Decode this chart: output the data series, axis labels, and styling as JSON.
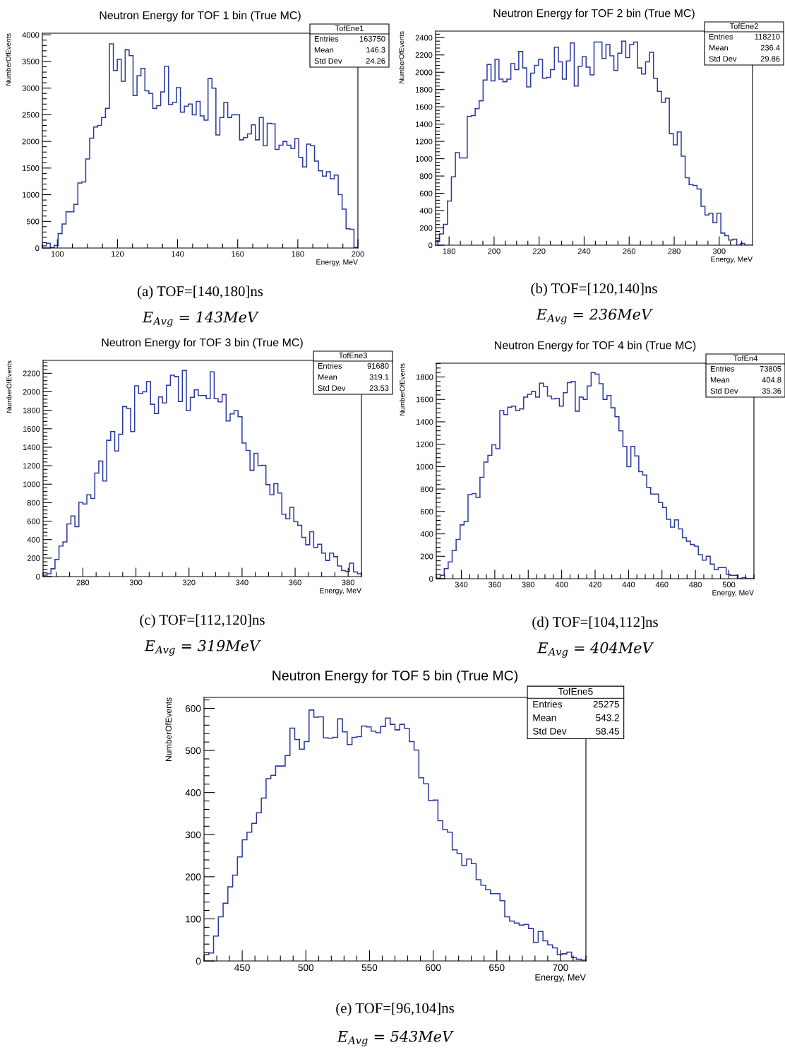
{
  "chart_data": [
    {
      "type": "histogram",
      "title": "Neutron Energy for TOF 1 bin (True MC)",
      "xlabel": "Energy, MeV",
      "ylabel": "NumberOfEvents",
      "color": "#2b3a9e",
      "annotations": [
        "TofEne1",
        "Entries",
        "163750",
        "Mean",
        "146.3",
        "Std Dev",
        "24.26",
        "(a) TOF=[140,180]ns",
        "E$_{Avg}$ = 143MeV"
      ],
      "xlim": [
        95,
        200
      ],
      "ylim": [
        0,
        4030
      ],
      "xticks": [
        100,
        120,
        140,
        160,
        180,
        200
      ],
      "yticks": [
        0,
        500,
        1000,
        1500,
        2000,
        2500,
        3000,
        3500,
        4000
      ],
      "bins": [
        95,
        96.3125,
        97.625,
        98.9375,
        100.25,
        101.5625,
        102.875,
        104.1875,
        105.5,
        106.8125,
        108.125,
        109.4375,
        110.75,
        112.0625,
        113.375,
        114.6875,
        116,
        117.3125,
        118.625,
        119.9375,
        121.25,
        122.5625,
        123.875,
        125.1875,
        126.5,
        127.8125,
        129.125,
        130.4375,
        131.75,
        133.0625,
        134.375,
        135.6875,
        137,
        138.3125,
        139.625,
        140.9375,
        142.25,
        143.5625,
        144.875,
        146.1875,
        147.5,
        148.8125,
        150.125,
        151.4375,
        152.75,
        154.0625,
        155.375,
        156.6875,
        158,
        159.3125,
        160.625,
        161.9375,
        163.25,
        164.5625,
        165.875,
        167.1875,
        168.5,
        169.8125,
        171.125,
        172.4375,
        173.75,
        175.0625,
        176.375,
        177.6875,
        179,
        180.3125,
        181.625,
        182.9375,
        184.25,
        185.5625,
        186.875,
        188.1875,
        189.5,
        190.8125,
        192.125,
        193.4375,
        194.75,
        196.0625,
        197.375,
        198.6875,
        200
      ],
      "values": [
        40,
        90,
        10,
        50,
        270,
        450,
        680,
        680,
        820,
        1220,
        1240,
        1670,
        2060,
        2270,
        2300,
        2450,
        2620,
        3830,
        3330,
        3540,
        3130,
        3720,
        3610,
        2860,
        3230,
        3370,
        2950,
        2900,
        2620,
        2670,
        2930,
        3410,
        2690,
        2730,
        3010,
        2550,
        2660,
        2700,
        2500,
        2750,
        2480,
        2400,
        3180,
        3000,
        2120,
        2450,
        2730,
        2450,
        2500,
        2500,
        2030,
        2070,
        2140,
        2310,
        2030,
        2450,
        1920,
        2340,
        2330,
        1850,
        1930,
        2000,
        1930,
        1870,
        2050,
        1700,
        1520,
        1950,
        1920,
        1630,
        1450,
        1350,
        1430,
        1300,
        1370,
        1000,
        730,
        360,
        350,
        10
      ]
    },
    {
      "type": "histogram",
      "title": "Neutron Energy for TOF 2 bin (True MC)",
      "xlabel": "Energy, MeV",
      "ylabel": "NumberOfEvents",
      "color": "#2b3a9e",
      "annotations": [
        "TofEne2",
        "Entries",
        "118210",
        "Mean",
        "236.4",
        "Std Dev",
        "29.86",
        "(b) TOF=[120,140]ns",
        "E$_{Avg}$ = 236MeV"
      ],
      "xlim": [
        174,
        314.8
      ],
      "ylim": [
        0,
        2476
      ],
      "xticks": [
        180,
        200,
        220,
        240,
        260,
        280,
        300
      ],
      "yticks": [
        0,
        200,
        400,
        600,
        800,
        1000,
        1200,
        1400,
        1600,
        1800,
        2000,
        2200,
        2400
      ],
      "bins": [
        174,
        175.76,
        177.52,
        179.28,
        181.04,
        182.8,
        184.56,
        186.32,
        188.08,
        189.84,
        191.6,
        193.36,
        195.12,
        196.88,
        198.64,
        200.4,
        202.16,
        203.92,
        205.68,
        207.44,
        209.2,
        210.96,
        212.72,
        214.48,
        216.24,
        218,
        219.76,
        221.52,
        223.28,
        225.04,
        226.8,
        228.56,
        230.32,
        232.08,
        233.84,
        235.6,
        237.36,
        239.12,
        240.88,
        242.64,
        244.4,
        246.16,
        247.92,
        249.68,
        251.44,
        253.2,
        254.96,
        256.72,
        258.48,
        260.24,
        262,
        263.76,
        265.52,
        267.28,
        269.04,
        270.8,
        272.56,
        274.32,
        276.08,
        277.84,
        279.6,
        281.36,
        283.12,
        284.88,
        286.64,
        288.4,
        290.16,
        291.92,
        293.68,
        295.44,
        297.2,
        298.96,
        300.72,
        302.48,
        304.24,
        306,
        307.76,
        309.52,
        311.28,
        313.04,
        314.8
      ],
      "values": [
        50,
        130,
        240,
        510,
        790,
        1070,
        1010,
        1010,
        1490,
        1500,
        1580,
        1670,
        1910,
        2090,
        1900,
        2150,
        1920,
        1890,
        1920,
        2100,
        2030,
        2240,
        2050,
        1830,
        1990,
        2080,
        2150,
        1930,
        1940,
        2030,
        2290,
        2120,
        1920,
        2130,
        2340,
        1840,
        2070,
        2180,
        2060,
        1970,
        2350,
        2350,
        2160,
        2320,
        2190,
        2020,
        2220,
        2360,
        2170,
        2320,
        2350,
        2050,
        1980,
        2120,
        2230,
        1930,
        1780,
        1650,
        1700,
        1290,
        1160,
        1310,
        1030,
        780,
        700,
        690,
        650,
        450,
        350,
        370,
        260,
        370,
        140,
        110,
        60,
        70,
        0,
        20,
        0,
        0
      ]
    },
    {
      "type": "histogram",
      "title": "Neutron Energy for TOF 3 bin (True MC)",
      "xlabel": "Energy, MeV",
      "ylabel": "NumberOfEvents",
      "color": "#2b3a9e",
      "annotations": [
        "TofEne3",
        "Entries",
        "91680",
        "Mean",
        "319.1",
        "Std Dev",
        "23.53",
        "(c) TOF=[112,120]ns",
        "E$_{Avg}$ = 319MeV"
      ],
      "xlim": [
        265,
        385
      ],
      "ylim": [
        0,
        2340
      ],
      "xticks": [
        280,
        300,
        320,
        340,
        360,
        380
      ],
      "yticks": [
        0,
        200,
        400,
        600,
        800,
        1000,
        1200,
        1400,
        1600,
        1800,
        2000,
        2200
      ],
      "bins": [
        265,
        266.5,
        268,
        269.5,
        271,
        272.5,
        274,
        275.5,
        277,
        278.5,
        280,
        281.5,
        283,
        284.5,
        286,
        287.5,
        289,
        290.5,
        292,
        293.5,
        295,
        296.5,
        298,
        299.5,
        301,
        302.5,
        304,
        305.5,
        307,
        308.5,
        310,
        311.5,
        313,
        314.5,
        316,
        317.5,
        319,
        320.5,
        322,
        323.5,
        325,
        326.5,
        328,
        329.5,
        331,
        332.5,
        334,
        335.5,
        337,
        338.5,
        340,
        341.5,
        343,
        344.5,
        346,
        347.5,
        349,
        350.5,
        352,
        353.5,
        355,
        356.5,
        358,
        359.5,
        361,
        362.5,
        364,
        365.5,
        367,
        368.5,
        370,
        371.5,
        373,
        374.5,
        376,
        377.5,
        379,
        380.5,
        382,
        383.5,
        385
      ],
      "values": [
        15,
        30,
        85,
        185,
        330,
        375,
        570,
        655,
        540,
        805,
        785,
        885,
        845,
        1120,
        1250,
        1035,
        1475,
        1570,
        1360,
        1540,
        1840,
        1820,
        1570,
        2065,
        1980,
        2000,
        2110,
        1865,
        1765,
        1945,
        1880,
        2070,
        2180,
        2165,
        1895,
        2230,
        1795,
        1940,
        2020,
        1960,
        1960,
        1925,
        2215,
        1925,
        1890,
        1970,
        1685,
        1760,
        1795,
        1730,
        1445,
        1365,
        1150,
        1335,
        1200,
        1205,
        995,
        885,
        1005,
        905,
        675,
        625,
        750,
        595,
        555,
        425,
        345,
        485,
        315,
        350,
        255,
        175,
        255,
        215,
        115,
        65,
        55,
        145,
        50,
        30
      ]
    },
    {
      "type": "histogram",
      "title": "Neutron Energy for TOF 4 bin (True MC)",
      "xlabel": "Energy, MeV",
      "ylabel": "NumberOfEvents",
      "color": "#2b3a9e",
      "annotations": [
        "TofEn4",
        "Entries",
        "73805",
        "Mean",
        "404.8",
        "Std Dev",
        "35.36",
        "(d) TOF=[104,112]ns",
        "E$_{Avg}$ = 404MeV"
      ],
      "xlim": [
        325,
        515
      ],
      "ylim": [
        0,
        1923
      ],
      "xticks": [
        340,
        360,
        380,
        400,
        420,
        440,
        460,
        480,
        500
      ],
      "yticks": [
        0,
        200,
        400,
        600,
        800,
        1000,
        1200,
        1400,
        1600,
        1800
      ],
      "bins": [
        325,
        327.375,
        329.75,
        332.125,
        334.5,
        336.875,
        339.25,
        341.625,
        344,
        346.375,
        348.75,
        351.125,
        353.5,
        355.875,
        358.25,
        360.625,
        363,
        365.375,
        367.75,
        370.125,
        372.5,
        374.875,
        377.25,
        379.625,
        382,
        384.375,
        386.75,
        389.125,
        391.5,
        393.875,
        396.25,
        398.625,
        401,
        403.375,
        405.75,
        408.125,
        410.5,
        412.875,
        415.25,
        417.625,
        420,
        422.375,
        424.75,
        427.125,
        429.5,
        431.875,
        434.25,
        436.625,
        439,
        441.375,
        443.75,
        446.125,
        448.5,
        450.875,
        453.25,
        455.625,
        458,
        460.375,
        462.75,
        465.125,
        467.5,
        469.875,
        472.25,
        474.625,
        477,
        479.375,
        481.75,
        484.125,
        486.5,
        488.875,
        491.25,
        493.625,
        496,
        498.375,
        500.75,
        503.125,
        505.5,
        507.875,
        510.25,
        512.625,
        515
      ],
      "values": [
        5,
        30,
        90,
        150,
        250,
        350,
        480,
        510,
        750,
        760,
        725,
        905,
        1040,
        1100,
        1195,
        1160,
        1500,
        1465,
        1530,
        1540,
        1500,
        1515,
        1620,
        1645,
        1670,
        1620,
        1745,
        1715,
        1630,
        1605,
        1610,
        1540,
        1660,
        1750,
        1760,
        1495,
        1620,
        1600,
        1720,
        1840,
        1825,
        1740,
        1600,
        1635,
        1525,
        1445,
        1320,
        1180,
        1000,
        1180,
        1095,
        955,
        925,
        815,
        755,
        755,
        680,
        635,
        530,
        460,
        525,
        445,
        365,
        335,
        305,
        290,
        215,
        165,
        200,
        130,
        80,
        100,
        100,
        40,
        30,
        30,
        0,
        10,
        0,
        0
      ]
    },
    {
      "type": "histogram",
      "title": "Neutron Energy for TOF 5 bin (True MC)",
      "xlabel": "Energy, MeV",
      "ylabel": "NumberOfEvents",
      "color": "#2b3a9e",
      "annotations": [
        "TofEne5",
        "Entries",
        "25275",
        "Mean",
        "543.2",
        "Std Dev",
        "58.45",
        "(e) TOF=[96,104]ns",
        "E$_{Avg}$ = 543MeV"
      ],
      "xlim": [
        420,
        720
      ],
      "ylim": [
        0,
        626
      ],
      "xticks": [
        450,
        500,
        550,
        600,
        650,
        700
      ],
      "yticks": [
        0,
        100,
        200,
        300,
        400,
        500,
        600
      ],
      "bins": [
        420,
        423.75,
        427.5,
        431.25,
        435,
        438.75,
        442.5,
        446.25,
        450,
        453.75,
        457.5,
        461.25,
        465,
        468.75,
        472.5,
        476.25,
        480,
        483.75,
        487.5,
        491.25,
        495,
        498.75,
        502.5,
        506.25,
        510,
        513.75,
        517.5,
        521.25,
        525,
        528.75,
        532.5,
        536.25,
        540,
        543.75,
        547.5,
        551.25,
        555,
        558.75,
        562.5,
        566.25,
        570,
        573.75,
        577.5,
        581.25,
        585,
        588.75,
        592.5,
        596.25,
        600,
        603.75,
        607.5,
        611.25,
        615,
        618.75,
        622.5,
        626.25,
        630,
        633.75,
        637.5,
        641.25,
        645,
        648.75,
        652.5,
        656.25,
        660,
        663.75,
        667.5,
        671.25,
        675,
        678.75,
        682.5,
        686.25,
        690,
        693.75,
        697.5,
        701.25,
        705,
        708.75,
        712.5,
        716.25,
        720
      ],
      "values": [
        15,
        19,
        59,
        105,
        137,
        176,
        204,
        247,
        288,
        306,
        327,
        352,
        387,
        433,
        441,
        463,
        463,
        488,
        553,
        526,
        503,
        521,
        596,
        579,
        580,
        530,
        529,
        531,
        575,
        544,
        514,
        531,
        533,
        558,
        556,
        546,
        542,
        557,
        577,
        562,
        549,
        562,
        552,
        521,
        501,
        435,
        421,
        381,
        382,
        333,
        312,
        306,
        264,
        255,
        227,
        242,
        231,
        193,
        180,
        169,
        160,
        160,
        143,
        105,
        95,
        90,
        85,
        87,
        77,
        44,
        70,
        48,
        38,
        31,
        15,
        17,
        21,
        8,
        4,
        2
      ]
    }
  ]
}
